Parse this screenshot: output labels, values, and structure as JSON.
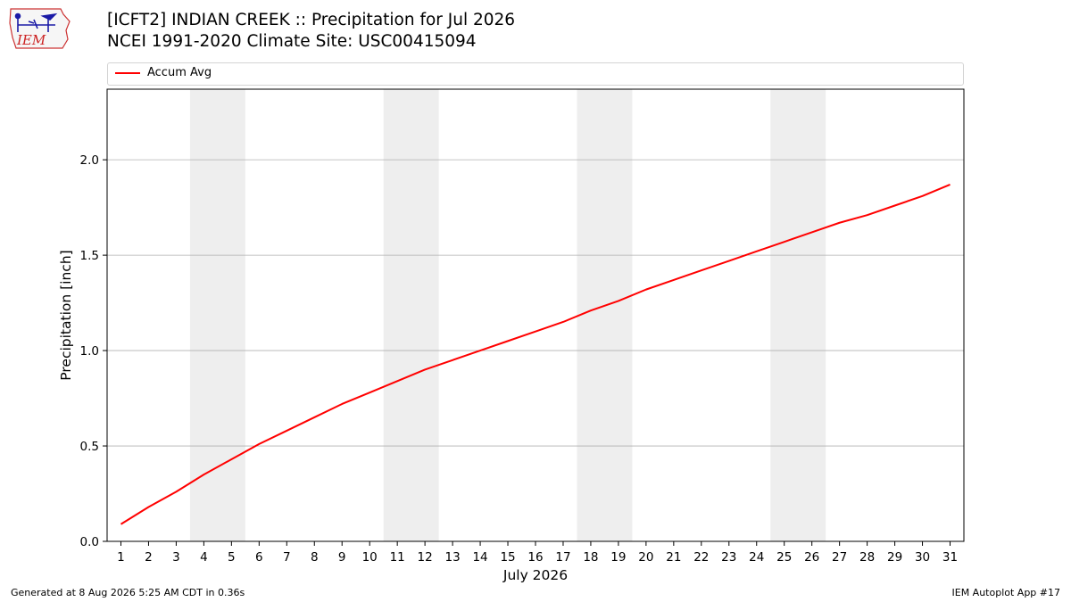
{
  "header": {
    "title_line1": "[ICFT2] INDIAN CREEK :: Precipitation for Jul 2026",
    "title_line2": "NCEI 1991-2020 Climate Site: USC00415094",
    "logo_text": "IEM"
  },
  "legend": {
    "entries": [
      {
        "label": "Accum Avg",
        "color": "#ff0000"
      }
    ]
  },
  "footer": {
    "left": "Generated at 8 Aug 2026 5:25 AM CDT in 0.36s",
    "right": "IEM Autoplot App #17"
  },
  "chart_data": {
    "type": "line",
    "title": "[ICFT2] INDIAN CREEK :: Precipitation for Jul 2026",
    "subtitle": "NCEI 1991-2020 Climate Site: USC00415094",
    "xlabel": "July 2026",
    "ylabel": "Precipitation [inch]",
    "x": [
      1,
      2,
      3,
      4,
      5,
      6,
      7,
      8,
      9,
      10,
      11,
      12,
      13,
      14,
      15,
      16,
      17,
      18,
      19,
      20,
      21,
      22,
      23,
      24,
      25,
      26,
      27,
      28,
      29,
      30,
      31
    ],
    "series": [
      {
        "name": "Accum Avg",
        "color": "#ff0000",
        "values": [
          0.09,
          0.18,
          0.26,
          0.35,
          0.43,
          0.51,
          0.58,
          0.65,
          0.72,
          0.78,
          0.84,
          0.9,
          0.95,
          1.0,
          1.05,
          1.1,
          1.15,
          1.21,
          1.26,
          1.32,
          1.37,
          1.42,
          1.47,
          1.52,
          1.57,
          1.62,
          1.67,
          1.71,
          1.76,
          1.81,
          1.87
        ]
      }
    ],
    "xlim": [
      0.5,
      31.5
    ],
    "ylim": [
      0,
      2.37
    ],
    "yticks": [
      0.0,
      0.5,
      1.0,
      1.5,
      2.0
    ],
    "ytick_labels": [
      "0.0",
      "0.5",
      "1.0",
      "1.5",
      "2.0"
    ],
    "xticks": [
      1,
      2,
      3,
      4,
      5,
      6,
      7,
      8,
      9,
      10,
      11,
      12,
      13,
      14,
      15,
      16,
      17,
      18,
      19,
      20,
      21,
      22,
      23,
      24,
      25,
      26,
      27,
      28,
      29,
      30,
      31
    ],
    "weekend_bands": [
      [
        3.5,
        5.5
      ],
      [
        10.5,
        12.5
      ],
      [
        17.5,
        19.5
      ],
      [
        24.5,
        26.5
      ]
    ],
    "grid": "horizontal",
    "legend_position": "top",
    "band_color": "#eeeeee",
    "grid_color": "#b0b0b0"
  }
}
